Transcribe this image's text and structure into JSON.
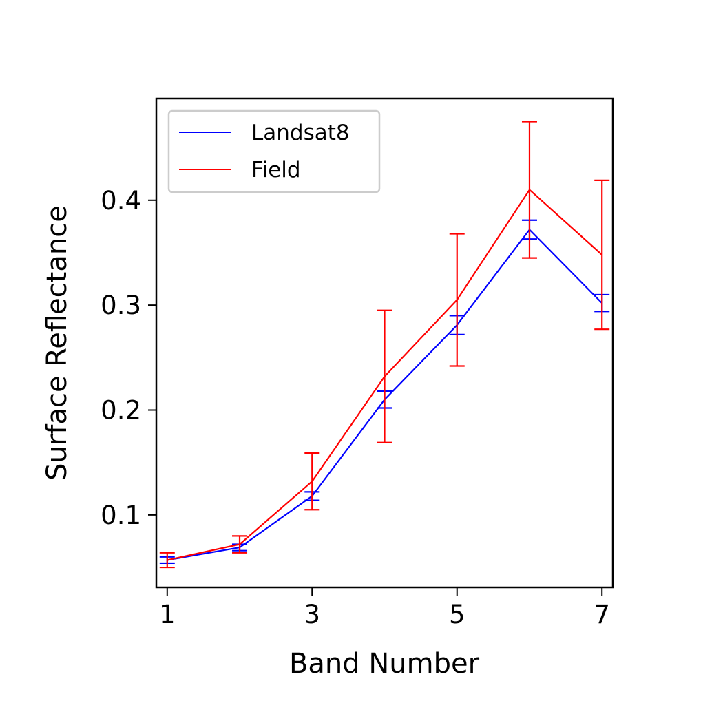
{
  "chart_data": {
    "type": "line",
    "title": "",
    "xlabel": "Band Number",
    "ylabel": "Surface Reflectance",
    "xlim": [
      0.85,
      7.15
    ],
    "ylim": [
      0.031,
      0.497
    ],
    "x_ticks": [
      1,
      3,
      5,
      7
    ],
    "x_tick_labels": [
      "1",
      "3",
      "5",
      "7"
    ],
    "y_ticks": [
      0.1,
      0.2,
      0.3,
      0.4
    ],
    "y_tick_labels": [
      "0.1",
      "0.2",
      "0.3",
      "0.4"
    ],
    "grid": false,
    "legend_position": "top-left",
    "x": [
      1,
      2,
      3,
      4,
      5,
      6,
      7
    ],
    "series": [
      {
        "name": "Landsat8",
        "color": "#0000ff",
        "values": [
          0.057,
          0.069,
          0.118,
          0.21,
          0.281,
          0.372,
          0.302
        ],
        "errors": [
          0.003,
          0.003,
          0.004,
          0.008,
          0.009,
          0.009,
          0.008
        ]
      },
      {
        "name": "Field",
        "color": "#ff0000",
        "values": [
          0.057,
          0.072,
          0.132,
          0.232,
          0.305,
          0.41,
          0.348
        ],
        "errors": [
          0.007,
          0.008,
          0.027,
          0.063,
          0.063,
          0.065,
          0.071
        ]
      }
    ]
  }
}
